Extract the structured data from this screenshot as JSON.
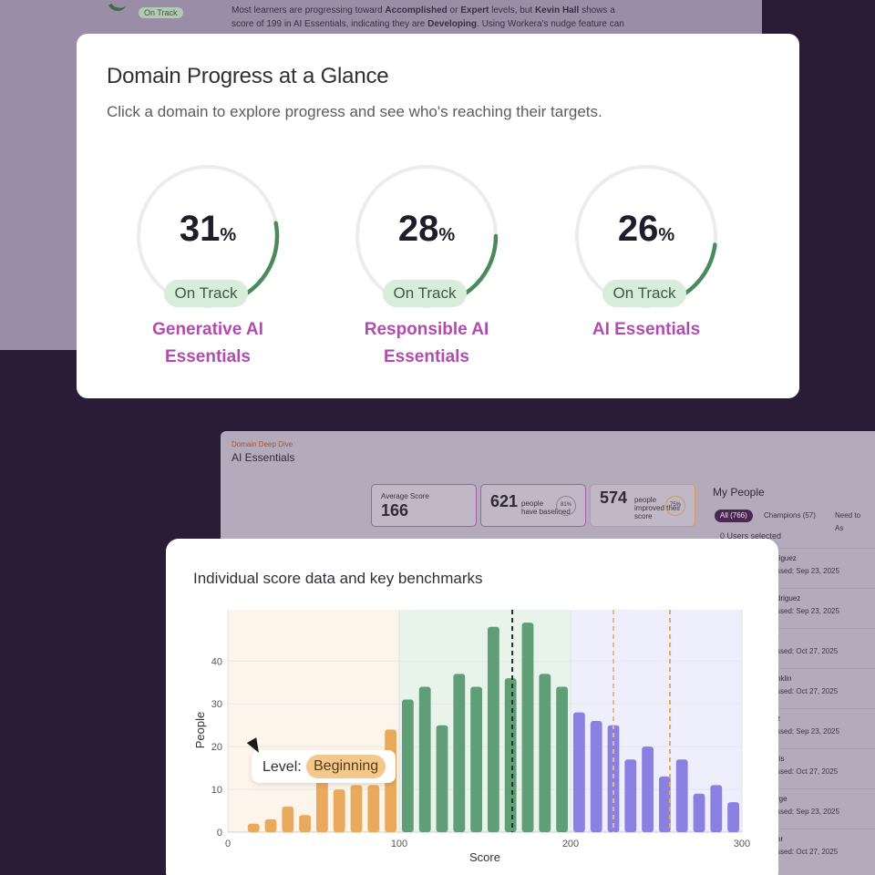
{
  "background": {
    "fragment_parts": [
      "Most learners are progressing toward ",
      "Accomplished",
      " or ",
      "Expert",
      " levels, but ",
      "Kevin Hall",
      " shows a score of 199 in AI Essentials, indicating they are ",
      "Developing",
      ". Using Workera's nudge feature can"
    ],
    "badge": "On Track"
  },
  "overview": {
    "title": "Domain Progress at a Glance",
    "subtitle": "Click a domain to explore progress and see who's reaching their targets.",
    "domains": [
      {
        "percent": "31",
        "unit": "%",
        "status": "On Track",
        "name_line1": "Generative AI",
        "name_line2": "Essentials",
        "progress": 0.31
      },
      {
        "percent": "28",
        "unit": "%",
        "status": "On Track",
        "name_line1": "Responsible AI",
        "name_line2": "Essentials",
        "progress": 0.28
      },
      {
        "percent": "26",
        "unit": "%",
        "status": "On Track",
        "name_line1": "AI Essentials",
        "name_line2": "",
        "progress": 0.26
      }
    ]
  },
  "deep_dive": {
    "kicker": "Domain Deep Dive",
    "title": "AI Essentials",
    "avg_label": "Average Score",
    "avg_value": "166",
    "baselined_value": "621",
    "baselined_label_1": "people",
    "baselined_label_2": "have baselined",
    "baselined_ring": "81%",
    "improved_value": "574",
    "improved_label_1": "people",
    "improved_label_2": "improved their",
    "improved_label_3": "score",
    "improved_ring": "75%",
    "people_title": "My People",
    "tabs": [
      "All (766)",
      "Champions (57)",
      "Need to As"
    ],
    "users_selected": "0 Users selected",
    "rows": [
      {
        "name": "riguez",
        "date": "ssed: Sep 23, 2025"
      },
      {
        "name": "driguez",
        "date": "ssed: Sep 23, 2025"
      },
      {
        "name": "r",
        "date": "ssed: Oct 27, 2025"
      },
      {
        "name": "nklin",
        "date": "ssed: Oct 27, 2025"
      },
      {
        "name": "z",
        "date": "ssed: Sep 23, 2025"
      },
      {
        "name": "ris",
        "date": "ssed: Oct 27, 2025"
      },
      {
        "name": "rge",
        "date": "ssed: Sep 23, 2025"
      },
      {
        "name": "or",
        "date": "ssed: Oct 27, 2025"
      }
    ]
  },
  "chart_card": {
    "title": "Individual score data and key benchmarks",
    "tooltip_key": "Level:",
    "tooltip_value": "Beginning"
  },
  "chart_data": {
    "type": "bar",
    "title": "Individual score data and key benchmarks",
    "xlabel": "Score",
    "ylabel": "People",
    "xlim": [
      0,
      300
    ],
    "ylim": [
      0,
      52
    ],
    "x_ticks": [
      0,
      100,
      200,
      300
    ],
    "y_ticks": [
      0,
      10,
      20,
      30,
      40
    ],
    "bin_width": 10,
    "bins_x": [
      15,
      25,
      35,
      45,
      55,
      65,
      75,
      85,
      95,
      105,
      115,
      125,
      135,
      145,
      155,
      165,
      175,
      185,
      195,
      205,
      215,
      225,
      235,
      245,
      255,
      265,
      275,
      285,
      295
    ],
    "values": [
      2,
      3,
      6,
      4,
      12,
      10,
      11,
      11,
      24,
      31,
      34,
      25,
      37,
      34,
      48,
      36,
      49,
      37,
      34,
      28,
      26,
      25,
      17,
      20,
      13,
      17,
      9,
      11,
      7
    ],
    "level_bands": [
      {
        "from": 0,
        "to": 100,
        "bar_color": "#eaaa5d",
        "band_color": "#fdf5ea"
      },
      {
        "from": 100,
        "to": 200,
        "bar_color": "#5f9e76",
        "band_color": "#e8f3ea"
      },
      {
        "from": 200,
        "to": 300,
        "bar_color": "#8a80e2",
        "band_color": "#eeeefd"
      }
    ],
    "benchmarks": [
      {
        "x": 166,
        "color": "#2b2b2b"
      },
      {
        "x": 225,
        "color": "#e8b98a"
      },
      {
        "x": 258,
        "color": "#e8a95a"
      }
    ],
    "grid": true
  }
}
